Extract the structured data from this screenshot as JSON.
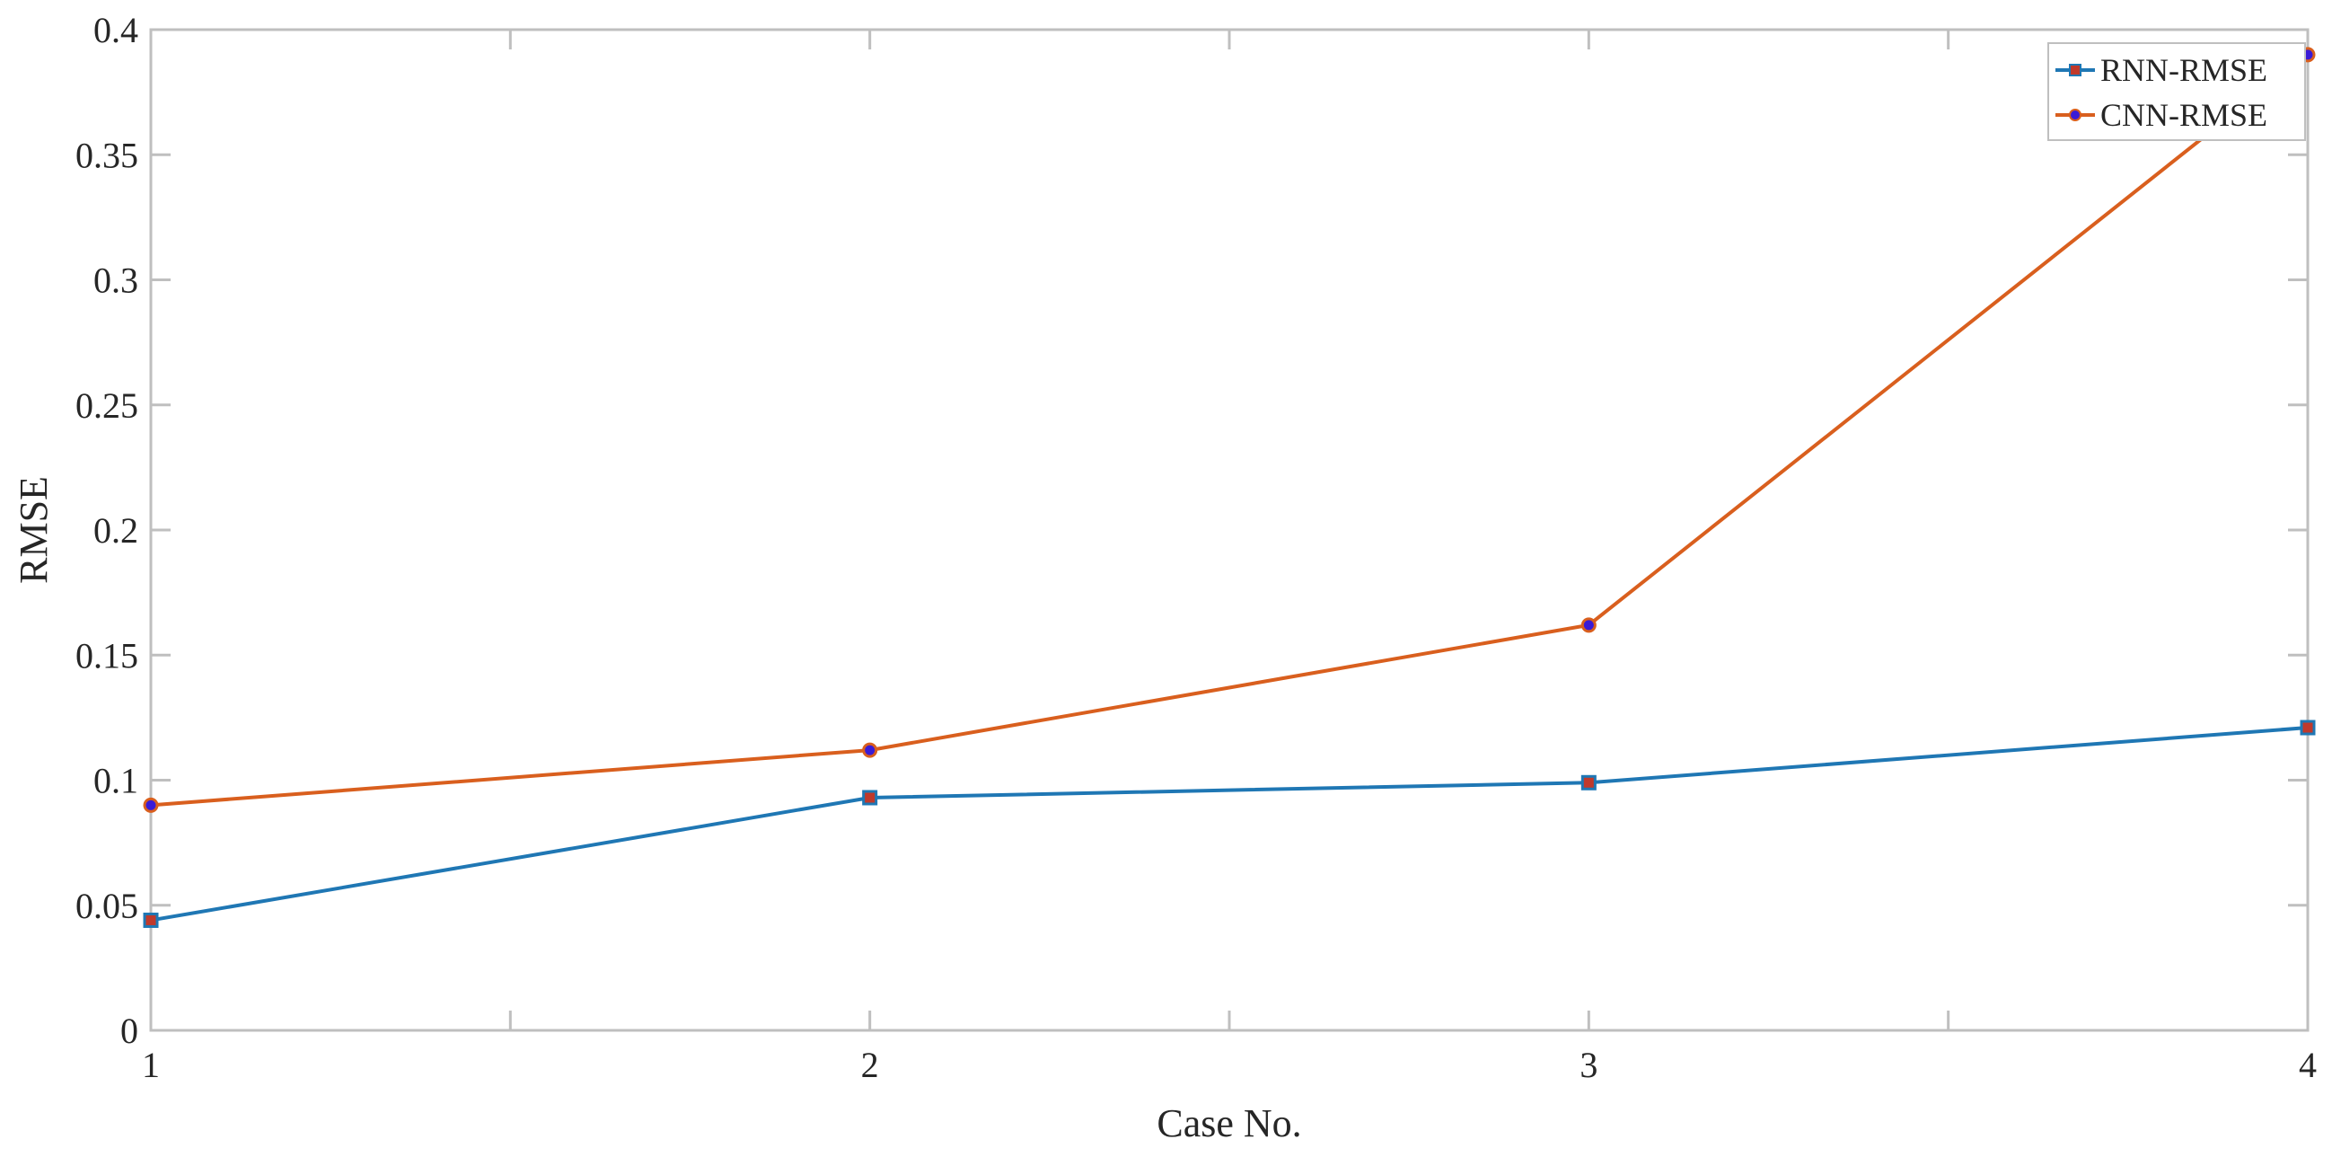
{
  "chart_data": {
    "type": "line",
    "title": "",
    "xlabel": "Case No.",
    "ylabel": "RMSE",
    "x": [
      1,
      2,
      3,
      4
    ],
    "xlim": [
      1,
      4
    ],
    "ylim": [
      0,
      0.4
    ],
    "x_ticks": [
      "1",
      "2",
      "3",
      "4"
    ],
    "y_ticks": [
      "0",
      "0.05",
      "0.1",
      "0.15",
      "0.2",
      "0.25",
      "0.3",
      "0.35",
      "0.4"
    ],
    "y_tick_values": [
      0,
      0.05,
      0.1,
      0.15,
      0.2,
      0.25,
      0.3,
      0.35,
      0.4
    ],
    "grid": false,
    "legend_position": "top-right",
    "series": [
      {
        "name": "RNN-RMSE",
        "values": [
          0.044,
          0.093,
          0.099,
          0.121
        ],
        "color": "#1f77b4",
        "marker": "square",
        "marker_fill": "#c0392b"
      },
      {
        "name": "CNN-RMSE",
        "values": [
          0.09,
          0.112,
          0.162,
          0.39
        ],
        "color": "#d95f1e",
        "marker": "circle",
        "marker_fill": "#3a1bd6"
      }
    ]
  }
}
